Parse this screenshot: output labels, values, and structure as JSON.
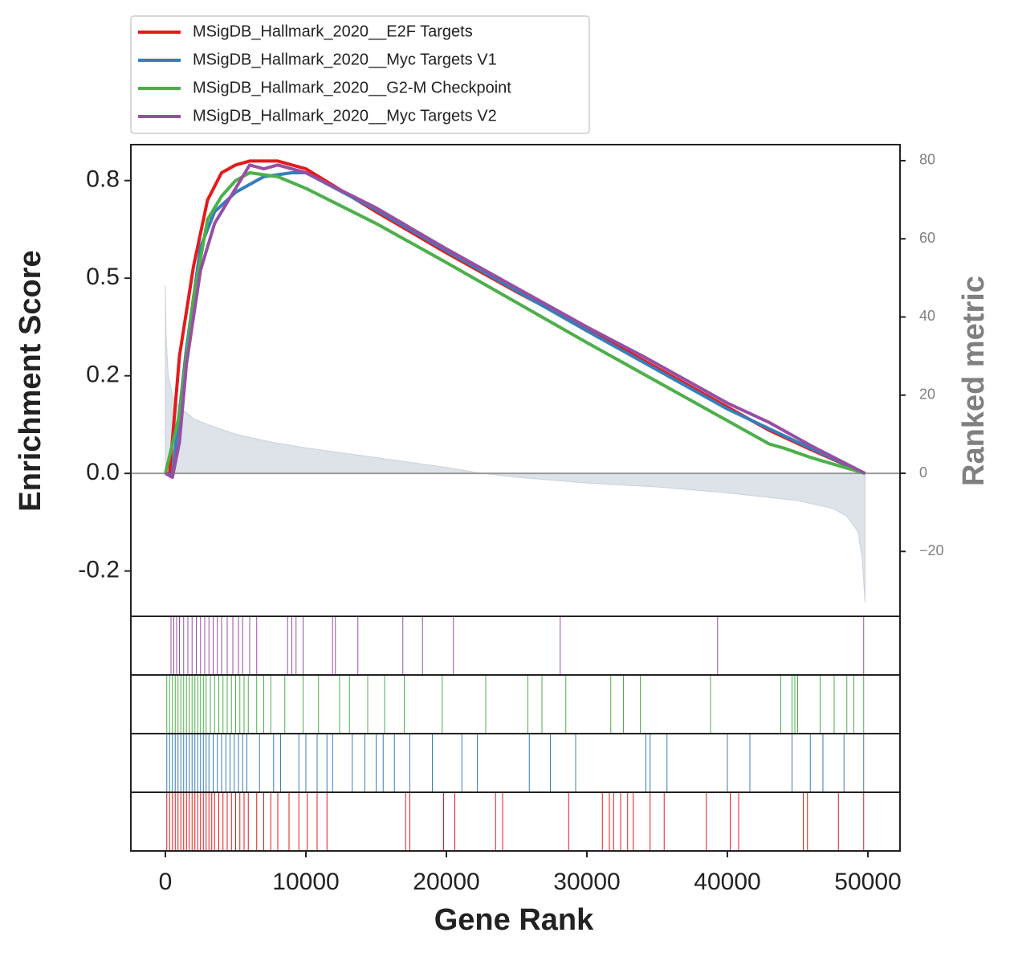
{
  "chart_data": {
    "type": "line",
    "xlabel": "Gene Rank",
    "ylabel": "Enrichment Score",
    "y2label": "Ranked metric",
    "xlim": [
      -2457,
      52286
    ],
    "xticks": [
      0,
      10000,
      20000,
      30000,
      40000,
      50000
    ],
    "ylim": [
      -0.366,
      0.842
    ],
    "yticks": [
      {
        "value": -0.25,
        "label": "-0.2"
      },
      {
        "value": 0,
        "label": "0.0"
      },
      {
        "value": 0.25,
        "label": "0.2"
      },
      {
        "value": 0.5,
        "label": "0.5"
      },
      {
        "value": 0.75,
        "label": "0.8"
      }
    ],
    "y2lim": [
      -36.6,
      84.1
    ],
    "y2ticks": [
      {
        "value": -20,
        "label": "−20"
      },
      0,
      20,
      40,
      60,
      80
    ],
    "legend": "top-left-outside",
    "ranked_metric": {
      "axis": "y2",
      "color": "#dde3e9",
      "x": [
        0,
        50,
        200,
        500,
        1000,
        2000,
        3000,
        5000,
        7500,
        10000,
        15000,
        20000,
        22500,
        25000,
        30000,
        35000,
        40000,
        45000,
        47500,
        48500,
        49300,
        49600,
        49800
      ],
      "values": [
        48,
        35,
        25,
        20,
        17,
        14,
        12.5,
        10,
        8,
        6.5,
        4,
        1.5,
        0,
        -1,
        -2.5,
        -3.5,
        -5,
        -7,
        -9,
        -11,
        -15,
        -22,
        -33
      ]
    },
    "series": [
      {
        "name": "MSigDB_Hallmark_2020__E2F Targets",
        "color": "#e41a1c",
        "x": [
          0,
          300,
          1000,
          2000,
          3000,
          4000,
          5000,
          6000,
          7000,
          8000,
          10000,
          15000,
          20000,
          25000,
          30000,
          35000,
          40000,
          43000,
          46000,
          49800
        ],
        "values": [
          0,
          0,
          0.3,
          0.53,
          0.7,
          0.77,
          0.79,
          0.8,
          0.8,
          0.8,
          0.78,
          0.67,
          0.565,
          0.465,
          0.37,
          0.27,
          0.17,
          0.11,
          0.06,
          0
        ],
        "hits": [
          100,
          300,
          500,
          700,
          900,
          1100,
          1300,
          1500,
          1700,
          1900,
          2100,
          2300,
          2500,
          2700,
          2900,
          3100,
          3300,
          3500,
          3800,
          4100,
          4400,
          4700,
          5000,
          5300,
          5600,
          5900,
          6500,
          7000,
          7500,
          8000,
          8800,
          9500,
          10100,
          10800,
          11500,
          17100,
          17400,
          19800,
          20600,
          23500,
          24000,
          28700,
          31100,
          31600,
          31900,
          32400,
          32900,
          33300,
          34500,
          35500,
          38500,
          40200,
          40800,
          45400,
          45700,
          47900,
          49700
        ]
      },
      {
        "name": "MSigDB_Hallmark_2020__Myc Targets V1",
        "color": "#377eb8",
        "x": [
          0,
          500,
          1500,
          2500,
          3500,
          5000,
          7000,
          9000,
          10000,
          15000,
          20000,
          30000,
          40000,
          45000,
          49800
        ],
        "values": [
          0,
          -0.005,
          0.32,
          0.58,
          0.67,
          0.72,
          0.76,
          0.77,
          0.77,
          0.675,
          0.57,
          0.365,
          0.165,
          0.08,
          0
        ],
        "hits": [
          100,
          300,
          500,
          700,
          900,
          1100,
          1300,
          1500,
          1700,
          1900,
          2100,
          2300,
          2500,
          2700,
          2900,
          3100,
          3400,
          3700,
          4000,
          4300,
          4600,
          4900,
          5200,
          5500,
          5800,
          6700,
          7700,
          8200,
          9500,
          10000,
          10800,
          11500,
          11900,
          13300,
          14200,
          15000,
          15500,
          16300,
          17400,
          19000,
          21100,
          22200,
          25900,
          27400,
          29200,
          34200,
          34500,
          35700,
          40000,
          41600,
          44600,
          45900,
          46800,
          48300,
          49700
        ]
      },
      {
        "name": "MSigDB_Hallmark_2020__G2-M Checkpoint",
        "color": "#4daf4a",
        "x": [
          0,
          1000,
          2000,
          3000,
          4000,
          5000,
          6000,
          8000,
          10000,
          15000,
          20000,
          30000,
          40000,
          43000,
          44000,
          46000,
          49800
        ],
        "values": [
          0,
          0.15,
          0.45,
          0.65,
          0.71,
          0.75,
          0.77,
          0.76,
          0.73,
          0.64,
          0.54,
          0.335,
          0.135,
          0.075,
          0.065,
          0.04,
          0
        ],
        "hits": [
          100,
          300,
          500,
          700,
          900,
          1100,
          1300,
          1500,
          1700,
          1900,
          2100,
          2300,
          2500,
          2700,
          2900,
          3200,
          3500,
          3800,
          4100,
          4400,
          4700,
          5000,
          5300,
          5600,
          5900,
          6500,
          7000,
          7500,
          8500,
          9800,
          10900,
          12400,
          13100,
          14400,
          15600,
          17000,
          19700,
          22800,
          25800,
          26800,
          28500,
          31700,
          32600,
          33800,
          38800,
          43800,
          44600,
          44800,
          45000,
          46600,
          47600,
          48500,
          49000,
          49700
        ]
      },
      {
        "name": "MSigDB_Hallmark_2020__Myc Targets V2",
        "color": "#984ea3",
        "x": [
          0,
          500,
          1000,
          1500,
          2500,
          3500,
          4500,
          5500,
          6000,
          7000,
          8000,
          10000,
          15000,
          20000,
          30000,
          34000,
          40000,
          43000,
          46000,
          49800
        ],
        "values": [
          0,
          -0.01,
          0.08,
          0.28,
          0.52,
          0.64,
          0.7,
          0.76,
          0.79,
          0.78,
          0.79,
          0.77,
          0.68,
          0.575,
          0.375,
          0.3,
          0.18,
          0.13,
          0.07,
          0
        ],
        "hits": [
          400,
          600,
          800,
          1000,
          1300,
          1600,
          1900,
          2200,
          2500,
          2800,
          3100,
          3400,
          3700,
          4000,
          4400,
          4800,
          5200,
          5500,
          6000,
          6500,
          8700,
          9000,
          9300,
          9800,
          11900,
          12100,
          13700,
          16900,
          18300,
          20500,
          28100,
          39300,
          49700
        ]
      }
    ]
  }
}
